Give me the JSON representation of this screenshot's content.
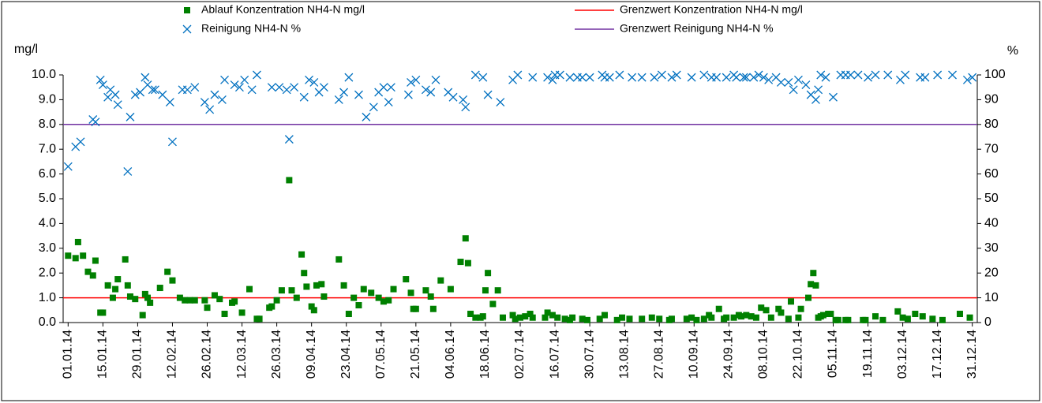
{
  "chart_data": {
    "type": "scatter",
    "ylabel": "mg/l",
    "y2label": "%",
    "xlim": [
      "2013-12-30",
      "2015-01-02"
    ],
    "ylim": [
      0,
      10
    ],
    "yticks": [
      {
        "value": 0,
        "label": "0.0"
      },
      {
        "value": 1,
        "label": "1.0"
      },
      {
        "value": 2,
        "label": "2.0"
      },
      {
        "value": 3,
        "label": "3.0"
      },
      {
        "value": 4,
        "label": "4.0"
      },
      {
        "value": 5,
        "label": "5.0"
      },
      {
        "value": 6,
        "label": "6.0"
      },
      {
        "value": 7,
        "label": "7.0"
      },
      {
        "value": 8,
        "label": "8.0"
      },
      {
        "value": 9,
        "label": "9.0"
      },
      {
        "value": 10,
        "label": "10.0"
      }
    ],
    "y2lim": [
      0,
      100
    ],
    "y2ticks": [
      0,
      10,
      20,
      30,
      40,
      50,
      60,
      70,
      80,
      90,
      100
    ],
    "xticks": [
      {
        "value": "2014-01-01",
        "label": "01.01.14"
      },
      {
        "value": "2014-01-15",
        "label": "15.01.14"
      },
      {
        "value": "2014-01-29",
        "label": "29.01.14"
      },
      {
        "value": "2014-02-12",
        "label": "12.02.14"
      },
      {
        "value": "2014-02-26",
        "label": "26.02.14"
      },
      {
        "value": "2014-03-12",
        "label": "12.03.14"
      },
      {
        "value": "2014-03-26",
        "label": "26.03.14"
      },
      {
        "value": "2014-04-09",
        "label": "09.04.14"
      },
      {
        "value": "2014-04-23",
        "label": "23.04.14"
      },
      {
        "value": "2014-05-07",
        "label": "07.05.14"
      },
      {
        "value": "2014-05-21",
        "label": "21.05.14"
      },
      {
        "value": "2014-06-04",
        "label": "04.06.14"
      },
      {
        "value": "2014-06-18",
        "label": "18.06.14"
      },
      {
        "value": "2014-07-02",
        "label": "02.07.14"
      },
      {
        "value": "2014-07-16",
        "label": "16.07.14"
      },
      {
        "value": "2014-07-30",
        "label": "30.07.14"
      },
      {
        "value": "2014-08-13",
        "label": "13.08.14"
      },
      {
        "value": "2014-08-27",
        "label": "27.08.14"
      },
      {
        "value": "2014-09-10",
        "label": "10.09.14"
      },
      {
        "value": "2014-09-24",
        "label": "24.09.14"
      },
      {
        "value": "2014-10-08",
        "label": "08.10.14"
      },
      {
        "value": "2014-10-22",
        "label": "22.10.14"
      },
      {
        "value": "2014-11-05",
        "label": "05.11.14"
      },
      {
        "value": "2014-11-19",
        "label": "19.11.14"
      },
      {
        "value": "2014-12-03",
        "label": "03.12.14"
      },
      {
        "value": "2014-12-17",
        "label": "17.12.14"
      },
      {
        "value": "2014-12-31",
        "label": "31.12.14"
      }
    ],
    "series": [
      {
        "name": "Ablauf Konzentration NH4-N mg/l",
        "color": "#008000",
        "marker": "square",
        "axis": "y",
        "x": [
          "2014-01-01",
          "2014-01-04",
          "2014-01-05",
          "2014-01-07",
          "2014-01-09",
          "2014-01-11",
          "2014-01-12",
          "2014-01-14",
          "2014-01-15",
          "2014-01-17",
          "2014-01-19",
          "2014-01-20",
          "2014-01-21",
          "2014-01-24",
          "2014-01-25",
          "2014-01-26",
          "2014-01-28",
          "2014-01-31",
          "2014-02-01",
          "2014-02-02",
          "2014-02-03",
          "2014-02-07",
          "2014-02-10",
          "2014-02-12",
          "2014-02-15",
          "2014-02-17",
          "2014-02-19",
          "2014-02-21",
          "2014-02-25",
          "2014-02-26",
          "2014-03-01",
          "2014-03-03",
          "2014-03-05",
          "2014-03-08",
          "2014-03-09",
          "2014-03-12",
          "2014-03-15",
          "2014-03-18",
          "2014-03-19",
          "2014-03-23",
          "2014-03-24",
          "2014-03-26",
          "2014-03-28",
          "2014-03-31",
          "2014-04-01",
          "2014-04-03",
          "2014-04-05",
          "2014-04-06",
          "2014-04-07",
          "2014-04-09",
          "2014-04-10",
          "2014-04-11",
          "2014-04-13",
          "2014-04-14",
          "2014-04-20",
          "2014-04-22",
          "2014-04-24",
          "2014-04-26",
          "2014-04-28",
          "2014-04-30",
          "2014-05-03",
          "2014-05-06",
          "2014-05-08",
          "2014-05-10",
          "2014-05-12",
          "2014-05-17",
          "2014-05-19",
          "2014-05-20",
          "2014-05-21",
          "2014-05-25",
          "2014-05-27",
          "2014-05-28",
          "2014-05-31",
          "2014-06-04",
          "2014-06-08",
          "2014-06-10",
          "2014-06-11",
          "2014-06-12",
          "2014-06-14",
          "2014-06-16",
          "2014-06-17",
          "2014-06-18",
          "2014-06-19",
          "2014-06-21",
          "2014-06-23",
          "2014-06-25",
          "2014-06-29",
          "2014-06-30",
          "2014-07-02",
          "2014-07-04",
          "2014-07-06",
          "2014-07-07",
          "2014-07-12",
          "2014-07-13",
          "2014-07-15",
          "2014-07-17",
          "2014-07-20",
          "2014-07-22",
          "2014-07-23",
          "2014-07-27",
          "2014-07-29",
          "2014-08-03",
          "2014-08-05",
          "2014-08-10",
          "2014-08-12",
          "2014-08-15",
          "2014-08-20",
          "2014-08-24",
          "2014-08-27",
          "2014-08-31",
          "2014-09-01",
          "2014-09-07",
          "2014-09-09",
          "2014-09-11",
          "2014-09-14",
          "2014-09-16",
          "2014-09-17",
          "2014-09-20",
          "2014-09-22",
          "2014-09-23",
          "2014-09-26",
          "2014-09-28",
          "2014-09-29",
          "2014-10-01",
          "2014-10-03",
          "2014-10-05",
          "2014-10-07",
          "2014-10-09",
          "2014-10-11",
          "2014-10-14",
          "2014-10-15",
          "2014-10-18",
          "2014-10-19",
          "2014-10-22",
          "2014-10-23",
          "2014-10-26",
          "2014-10-27",
          "2014-10-28",
          "2014-10-29",
          "2014-10-30",
          "2014-10-31",
          "2014-11-01",
          "2014-11-03",
          "2014-11-04",
          "2014-11-06",
          "2014-11-07",
          "2014-11-10",
          "2014-11-11",
          "2014-11-17",
          "2014-11-18",
          "2014-11-22",
          "2014-11-25",
          "2014-12-01",
          "2014-12-03",
          "2014-12-05",
          "2014-12-08",
          "2014-12-11",
          "2014-12-15",
          "2014-12-19",
          "2014-12-26",
          "2014-12-30"
        ],
        "values": [
          2.7,
          2.6,
          3.25,
          2.7,
          2.05,
          1.9,
          2.5,
          0.4,
          0.4,
          1.5,
          1.0,
          1.35,
          1.75,
          2.55,
          1.5,
          1.05,
          0.95,
          0.3,
          1.15,
          1.0,
          0.8,
          1.4,
          2.05,
          1.7,
          1.0,
          0.9,
          0.9,
          0.9,
          0.9,
          0.6,
          1.1,
          0.95,
          0.35,
          0.8,
          0.85,
          0.4,
          1.35,
          0.15,
          0.15,
          0.6,
          0.65,
          0.9,
          1.3,
          5.75,
          1.3,
          1.0,
          2.75,
          2.0,
          1.45,
          0.65,
          0.5,
          1.5,
          1.55,
          1.05,
          2.55,
          1.5,
          0.35,
          1.0,
          0.7,
          1.35,
          1.2,
          1.0,
          0.85,
          0.9,
          1.35,
          1.75,
          1.2,
          0.55,
          0.55,
          1.3,
          1.05,
          0.55,
          1.7,
          1.35,
          2.45,
          3.4,
          2.4,
          0.35,
          0.2,
          0.2,
          0.25,
          1.3,
          2.0,
          0.75,
          1.3,
          0.2,
          0.3,
          0.15,
          0.2,
          0.25,
          0.35,
          0.2,
          0.2,
          0.4,
          0.3,
          0.2,
          0.15,
          0.1,
          0.2,
          0.15,
          0.1,
          0.15,
          0.3,
          0.1,
          0.2,
          0.15,
          0.15,
          0.2,
          0.15,
          0.1,
          0.15,
          0.15,
          0.2,
          0.1,
          0.15,
          0.3,
          0.2,
          0.55,
          0.15,
          0.2,
          0.2,
          0.3,
          0.25,
          0.3,
          0.25,
          0.2,
          0.6,
          0.5,
          0.2,
          0.55,
          0.4,
          0.15,
          0.85,
          0.2,
          0.55,
          1.0,
          1.55,
          2.0,
          1.5,
          0.2,
          0.25,
          0.3,
          0.35,
          0.35,
          0.1,
          0.1,
          0.1,
          0.1,
          0.1,
          0.1,
          0.25,
          0.1,
          0.45,
          0.2,
          0.15,
          0.35,
          0.25,
          0.15,
          0.1,
          0.35,
          0.2
        ]
      },
      {
        "name": "Reinigung NH4-N %",
        "color": "#0070c0",
        "marker": "x",
        "axis": "y2",
        "x": [
          "2014-01-01",
          "2014-01-04",
          "2014-01-06",
          "2014-01-11",
          "2014-01-12",
          "2014-01-14",
          "2014-01-15",
          "2014-01-17",
          "2014-01-18",
          "2014-01-20",
          "2014-01-21",
          "2014-01-25",
          "2014-01-26",
          "2014-01-28",
          "2014-01-30",
          "2014-02-01",
          "2014-02-02",
          "2014-02-04",
          "2014-02-05",
          "2014-02-08",
          "2014-02-11",
          "2014-02-12",
          "2014-02-16",
          "2014-02-18",
          "2014-02-21",
          "2014-02-25",
          "2014-02-27",
          "2014-03-01",
          "2014-03-04",
          "2014-03-05",
          "2014-03-09",
          "2014-03-11",
          "2014-03-13",
          "2014-03-16",
          "2014-03-18",
          "2014-03-24",
          "2014-03-27",
          "2014-03-30",
          "2014-03-31",
          "2014-04-02",
          "2014-04-06",
          "2014-04-08",
          "2014-04-10",
          "2014-04-12",
          "2014-04-14",
          "2014-04-20",
          "2014-04-22",
          "2014-04-24",
          "2014-04-28",
          "2014-05-01",
          "2014-05-04",
          "2014-05-06",
          "2014-05-08",
          "2014-05-10",
          "2014-05-11",
          "2014-05-18",
          "2014-05-19",
          "2014-05-21",
          "2014-05-25",
          "2014-05-27",
          "2014-05-29",
          "2014-06-03",
          "2014-06-05",
          "2014-06-09",
          "2014-06-10",
          "2014-06-14",
          "2014-06-17",
          "2014-06-19",
          "2014-06-24",
          "2014-06-29",
          "2014-07-01",
          "2014-07-07",
          "2014-07-13",
          "2014-07-15",
          "2014-07-16",
          "2014-07-18",
          "2014-07-22",
          "2014-07-25",
          "2014-07-27",
          "2014-07-30",
          "2014-08-04",
          "2014-08-05",
          "2014-08-07",
          "2014-08-11",
          "2014-08-16",
          "2014-08-20",
          "2014-08-25",
          "2014-08-28",
          "2014-09-01",
          "2014-09-03",
          "2014-09-09",
          "2014-09-14",
          "2014-09-17",
          "2014-09-19",
          "2014-09-23",
          "2014-09-26",
          "2014-09-27",
          "2014-09-30",
          "2014-10-01",
          "2014-10-04",
          "2014-10-06",
          "2014-10-08",
          "2014-10-10",
          "2014-10-13",
          "2014-10-15",
          "2014-10-18",
          "2014-10-20",
          "2014-10-22",
          "2014-10-25",
          "2014-10-27",
          "2014-10-29",
          "2014-10-30",
          "2014-10-31",
          "2014-11-02",
          "2014-11-05",
          "2014-11-08",
          "2014-11-10",
          "2014-11-12",
          "2014-11-15",
          "2014-11-19",
          "2014-11-22",
          "2014-11-27",
          "2014-12-02",
          "2014-12-04",
          "2014-12-10",
          "2014-12-12",
          "2014-12-17",
          "2014-12-23",
          "2014-12-29",
          "2014-12-31"
        ],
        "values": [
          63,
          71,
          73,
          82,
          81,
          98,
          96,
          91,
          94,
          92,
          88,
          61,
          83,
          92,
          93,
          99,
          96,
          94,
          94,
          92,
          89,
          73,
          94,
          94,
          95,
          89,
          86,
          92,
          90,
          98,
          96,
          95,
          98,
          94,
          100,
          95,
          95,
          94,
          74,
          95,
          91,
          98,
          97,
          93,
          95,
          90,
          93,
          99,
          92,
          83,
          87,
          93,
          95,
          89,
          95,
          92,
          97,
          98,
          94,
          93,
          98,
          93,
          91,
          90,
          87,
          100,
          99,
          92,
          89,
          98,
          100,
          99,
          99,
          98,
          100,
          100,
          99,
          99,
          99,
          99,
          100,
          99,
          99,
          100,
          99,
          99,
          99,
          100,
          99,
          100,
          99,
          100,
          99,
          99,
          99,
          100,
          99,
          99,
          99,
          99,
          100,
          99,
          98,
          99,
          97,
          97,
          94,
          98,
          96,
          92,
          90,
          94,
          100,
          99,
          91,
          100,
          100,
          100,
          100,
          99,
          100,
          100,
          98,
          100,
          99,
          99,
          100,
          100,
          98,
          99
        ]
      },
      {
        "name": "Grenzwert Konzentration NH4-N mg/l",
        "color": "#ff0000",
        "marker": "line",
        "axis": "y",
        "value": 1
      },
      {
        "name": "Grenzwert Reinigung NH4-N %",
        "color": "#7030a0",
        "marker": "line",
        "axis": "y2",
        "value": 80
      }
    ]
  }
}
